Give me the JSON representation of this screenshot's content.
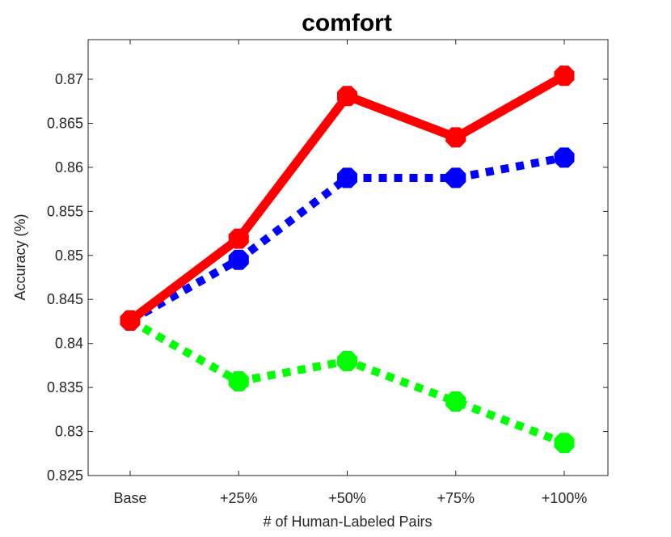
{
  "chart_data": {
    "type": "line",
    "title": "comfort",
    "xlabel": "# of Human-Labeled Pairs",
    "ylabel": "Accuracy (%)",
    "categories": [
      "Base",
      "+25%",
      "+50%",
      "+75%",
      "+100%"
    ],
    "ylim": [
      0.825,
      0.8745
    ],
    "yticks": [
      "0.825",
      "0.83",
      "0.835",
      "0.84",
      "0.845",
      "0.85",
      "0.855",
      "0.86",
      "0.865",
      "0.87"
    ],
    "legend": false,
    "grid": false,
    "series": [
      {
        "color": "#ff0000",
        "style": "solid",
        "values": [
          0.8426,
          0.8519,
          0.8681,
          0.8634,
          0.8704
        ]
      },
      {
        "color": "#0000ff",
        "style": "dotted",
        "values": [
          0.8426,
          0.8495,
          0.8588,
          0.8588,
          0.8611
        ]
      },
      {
        "color": "#00ff00",
        "style": "dotted",
        "values": [
          0.8426,
          0.8357,
          0.838,
          0.8334,
          0.8287
        ]
      }
    ]
  }
}
